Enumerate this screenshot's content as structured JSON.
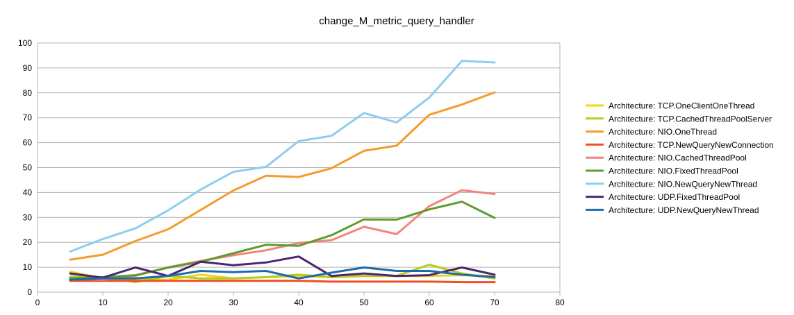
{
  "chart_data": {
    "type": "line",
    "title": "change_M_metric_query_handler",
    "xlabel": "",
    "ylabel": "",
    "xlim": [
      0,
      80
    ],
    "ylim": [
      0,
      100
    ],
    "xticks": [
      0,
      10,
      20,
      30,
      40,
      50,
      60,
      70,
      80
    ],
    "yticks": [
      0,
      10,
      20,
      30,
      40,
      50,
      60,
      70,
      80,
      90,
      100
    ],
    "x": [
      5,
      10,
      15,
      20,
      25,
      30,
      35,
      40,
      45,
      50,
      55,
      60,
      65,
      70
    ],
    "grid": "horizontal",
    "legend_position": "right",
    "series": [
      {
        "name": "Architecture: TCP.OneClientOneThread",
        "color": "#f2d31a",
        "values": [
          8.2,
          5.5,
          5.0,
          5.0,
          7.0,
          5.5,
          6.0,
          6.5,
          6.0,
          6.5,
          6.5,
          6.5,
          6.8,
          6.5
        ]
      },
      {
        "name": "Architecture: TCP.CachedThreadPoolServer",
        "color": "#b5cc1b",
        "values": [
          6.2,
          6.0,
          4.0,
          6.5,
          5.5,
          5.5,
          6.0,
          7.0,
          6.0,
          6.5,
          6.5,
          11.0,
          7.5,
          5.5
        ]
      },
      {
        "name": "Architecture: NIO.OneThread",
        "color": "#f39c2a",
        "values": [
          13.0,
          15.0,
          20.5,
          25.2,
          33.0,
          40.8,
          46.7,
          46.2,
          49.7,
          56.7,
          58.8,
          71.2,
          75.3,
          80.2
        ]
      },
      {
        "name": "Architecture: TCP.NewQueryNewConnection",
        "color": "#f04e23",
        "values": [
          4.5,
          4.5,
          4.5,
          4.5,
          4.5,
          4.5,
          4.5,
          4.5,
          4.2,
          4.2,
          4.2,
          4.2,
          4.0,
          4.0
        ]
      },
      {
        "name": "Architecture: NIO.CachedThreadPool",
        "color": "#f4837f",
        "values": [
          5.5,
          5.0,
          6.5,
          10.0,
          12.5,
          14.8,
          16.8,
          19.7,
          20.8,
          26.2,
          23.3,
          34.5,
          40.9,
          39.4
        ]
      },
      {
        "name": "Architecture: NIO.FixedThreadPool",
        "color": "#5e9c2b",
        "values": [
          5.5,
          6.0,
          6.8,
          9.8,
          12.2,
          15.6,
          19.0,
          18.6,
          22.8,
          29.2,
          29.1,
          33.2,
          36.3,
          29.8
        ]
      },
      {
        "name": "Architecture: NIO.NewQueryNewThread",
        "color": "#8ecdf0",
        "values": [
          16.3,
          21.3,
          25.6,
          32.8,
          41.2,
          48.3,
          50.3,
          60.6,
          62.7,
          71.9,
          68.1,
          78.1,
          92.8,
          92.2
        ]
      },
      {
        "name": "Architecture: UDP.FixedThreadPool",
        "color": "#4b2472",
        "values": [
          7.5,
          5.8,
          9.9,
          6.5,
          12.2,
          10.8,
          11.9,
          14.3,
          6.5,
          7.5,
          6.5,
          6.8,
          9.9,
          7.0
        ]
      },
      {
        "name": "Architecture: UDP.NewQueryNewThread",
        "color": "#1a6bac",
        "values": [
          5.0,
          5.5,
          5.5,
          6.5,
          8.5,
          8.0,
          8.5,
          5.5,
          7.8,
          9.9,
          8.5,
          8.5,
          7.0,
          6.0
        ]
      }
    ]
  }
}
